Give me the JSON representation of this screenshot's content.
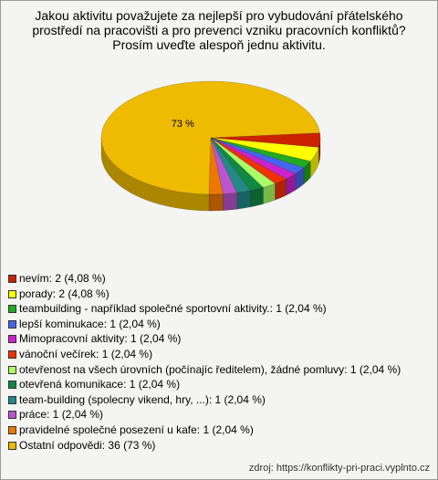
{
  "chart_data": {
    "type": "pie",
    "title": "Jakou aktivitu považujete za nejlepší pro vybudování přátelského prostředí na pracovišti a pro prevenci vzniku pracovních konfliktů? Prosím uveďte alespoň jednu aktivitu.",
    "categories": [
      "nevím: 2 (4,08 %)",
      "porady: 2 (4,08 %)",
      "teambuilding - například společné sportovní aktivity.: 1 (2,04 %)",
      "lepší kominukace: 1 (2,04 %)",
      "Mimopracovní aktivity: 1 (2,04 %)",
      "vánoční večírek: 1 (2,04 %)",
      "otevřenost na všech úrovních (počínajíc ředitelem), žádné pomluvy: 1 (2,04 %)",
      "otevřená komunikace: 1 (2,04 %)",
      "team-building (spolecny vikend, hry, ...): 1 (2,04 %)",
      "práce: 1 (2,04 %)",
      "pravidelné společné posezení u kafe: 1 (2,04 %)",
      "Ostatní odpovědi: 36 (73 %)"
    ],
    "values": [
      4.08,
      4.08,
      2.04,
      2.04,
      2.04,
      2.04,
      2.04,
      2.04,
      2.04,
      2.04,
      2.04,
      73
    ],
    "value_labels": [
      null,
      null,
      null,
      null,
      null,
      null,
      null,
      null,
      null,
      null,
      null,
      "73 %"
    ],
    "colors": [
      "#cc2200",
      "#ffff00",
      "#22aa22",
      "#4466ee",
      "#cc22cc",
      "#ee3300",
      "#aaff66",
      "#118844",
      "#228888",
      "#bb55cc",
      "#ee7700",
      "#eebb00"
    ],
    "source": "zdroj: https://konflikty-pri-praci.vyplnto.cz"
  }
}
